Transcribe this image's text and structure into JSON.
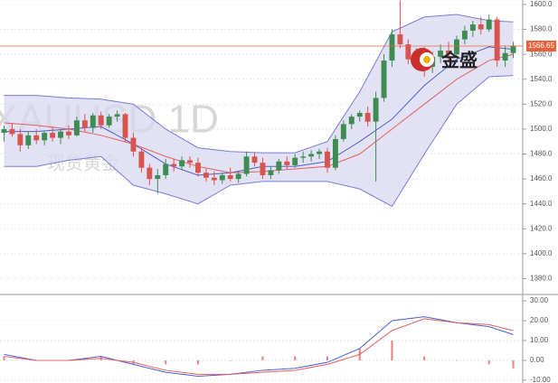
{
  "chart_data": {
    "type": "candlestick",
    "title": "XAUUSD 1D",
    "subtitle": "现货黄金",
    "logo": "金盛",
    "up_color": "#3d8c52",
    "down_color": "#d9534f",
    "grid": true,
    "ylim": [
      1368,
      1603.6
    ],
    "yticks": [
      {
        "value": 1380,
        "label": "1380.0"
      },
      {
        "value": 1400,
        "label": "1400.0"
      },
      {
        "value": 1420,
        "label": "1420.0"
      },
      {
        "value": 1440,
        "label": "1440.0"
      },
      {
        "value": 1460,
        "label": "1460.0"
      },
      {
        "value": 1480,
        "label": "1480.0"
      },
      {
        "value": 1500,
        "label": "1500.0"
      },
      {
        "value": 1520,
        "label": "1520.0"
      },
      {
        "value": 1540,
        "label": "1540.0"
      },
      {
        "value": 1560,
        "label": "1560.0"
      },
      {
        "value": 1580,
        "label": "1580.0"
      },
      {
        "value": 1600,
        "label": "1600.0"
      }
    ],
    "last_price": 1566.65,
    "last_price_color": "#e8603c",
    "open": [
      1497,
      1500,
      1496,
      1487,
      1495,
      1491,
      1497,
      1493,
      1498,
      1495,
      1507,
      1501,
      1511,
      1503,
      1510,
      1512,
      1493,
      1482,
      1469,
      1460,
      1463,
      1472,
      1470,
      1475,
      1473,
      1465,
      1461,
      1459,
      1463,
      1460,
      1464,
      1478,
      1473,
      1463,
      1467,
      1474,
      1471,
      1477,
      1478,
      1480,
      1482,
      1469,
      1492,
      1504,
      1510,
      1513,
      1506,
      1525,
      1555,
      1576,
      1568,
      1556,
      1560,
      1550,
      1558,
      1563,
      1560,
      1572,
      1579,
      1584,
      1580,
      1588,
      1555,
      1561
    ],
    "high": [
      1503,
      1505,
      1500,
      1498,
      1500,
      1499,
      1502,
      1500,
      1503,
      1510,
      1512,
      1513,
      1514,
      1512,
      1515,
      1513,
      1497,
      1485,
      1472,
      1468,
      1476,
      1476,
      1478,
      1478,
      1477,
      1468,
      1466,
      1465,
      1469,
      1466,
      1482,
      1481,
      1477,
      1470,
      1476,
      1478,
      1480,
      1482,
      1483,
      1484,
      1485,
      1495,
      1507,
      1512,
      1515,
      1518,
      1530,
      1560,
      1580,
      1603,
      1572,
      1565,
      1566,
      1562,
      1568,
      1570,
      1575,
      1583,
      1587,
      1590,
      1592,
      1590,
      1567,
      1570
    ],
    "low": [
      1490,
      1494,
      1482,
      1484,
      1488,
      1487,
      1490,
      1488,
      1492,
      1494,
      1498,
      1497,
      1500,
      1501,
      1506,
      1490,
      1478,
      1465,
      1455,
      1448,
      1460,
      1466,
      1467,
      1469,
      1462,
      1458,
      1455,
      1456,
      1458,
      1457,
      1462,
      1470,
      1460,
      1460,
      1464,
      1468,
      1469,
      1473,
      1474,
      1476,
      1465,
      1467,
      1490,
      1500,
      1506,
      1502,
      1458,
      1522,
      1550,
      1565,
      1552,
      1548,
      1542,
      1545,
      1553,
      1555,
      1558,
      1568,
      1574,
      1576,
      1578,
      1550,
      1550,
      1557
    ],
    "close": [
      1500,
      1496,
      1487,
      1495,
      1491,
      1497,
      1493,
      1498,
      1495,
      1507,
      1501,
      1511,
      1503,
      1510,
      1512,
      1493,
      1482,
      1469,
      1460,
      1463,
      1472,
      1470,
      1475,
      1473,
      1465,
      1461,
      1459,
      1463,
      1460,
      1464,
      1478,
      1473,
      1463,
      1467,
      1474,
      1471,
      1477,
      1478,
      1480,
      1482,
      1469,
      1492,
      1504,
      1510,
      1513,
      1506,
      1525,
      1555,
      1576,
      1568,
      1556,
      1560,
      1550,
      1558,
      1563,
      1560,
      1572,
      1579,
      1584,
      1580,
      1588,
      1555,
      1561,
      1567
    ],
    "bands": {
      "x": [
        0,
        4,
        8,
        12,
        16,
        20,
        24,
        28,
        32,
        36,
        40,
        44,
        48,
        52,
        56,
        60,
        63
      ],
      "fill": "#d8d8f0",
      "upper": {
        "color": "#7b7bd8",
        "values": [
          1527,
          1527,
          1525,
          1524,
          1520,
          1500,
          1485,
          1482,
          1481,
          1481,
          1490,
          1530,
          1578,
          1590,
          1592,
          1587,
          1586
        ]
      },
      "lower": {
        "color": "#7b7bd8",
        "values": [
          1470,
          1470,
          1475,
          1478,
          1455,
          1448,
          1440,
          1455,
          1458,
          1458,
          1458,
          1452,
          1438,
          1480,
          1520,
          1542,
          1543
        ]
      },
      "mid": {
        "color": "#4a5fd8",
        "values": [
          1498,
          1498,
          1500,
          1502,
          1488,
          1472,
          1463,
          1465,
          1470,
          1470,
          1474,
          1490,
          1508,
          1535,
          1556,
          1566,
          1564
        ]
      },
      "ma": {
        "color": "#e06060",
        "values": [
          1505,
          1503,
          1500,
          1495,
          1488,
          1478,
          1470,
          1465,
          1466,
          1468,
          1470,
          1480,
          1500,
          1520,
          1540,
          1555,
          1560
        ]
      }
    },
    "macd": {
      "ylim": [
        -11.4,
        32.3
      ],
      "yticks": [
        {
          "value": -10,
          "label": "-10.00"
        },
        {
          "value": 0,
          "label": "0.00"
        },
        {
          "value": 10,
          "label": "10.00"
        },
        {
          "value": 20,
          "label": "20.00"
        },
        {
          "value": 30,
          "label": "30.00"
        }
      ],
      "x": [
        0,
        4,
        8,
        12,
        16,
        20,
        24,
        28,
        32,
        36,
        40,
        44,
        48,
        52,
        56,
        60,
        63
      ],
      "dif": {
        "color": "#4a5fd8",
        "values": [
          3,
          0,
          0,
          2,
          -2,
          -6,
          -8,
          -7,
          -5,
          -4,
          -1,
          6,
          20,
          22,
          19,
          17,
          13
        ]
      },
      "dea": {
        "color": "#e06060",
        "values": [
          2,
          0,
          0,
          1,
          -1,
          -5,
          -7,
          -7,
          -6,
          -5,
          -2,
          3,
          15,
          21,
          19,
          18,
          15
        ]
      },
      "histogram": {
        "color": "#e88080",
        "values": [
          2,
          0,
          0,
          2,
          -2,
          -2,
          -2,
          0,
          2,
          2,
          2,
          6,
          10,
          2,
          0,
          -2,
          -4
        ]
      }
    }
  }
}
